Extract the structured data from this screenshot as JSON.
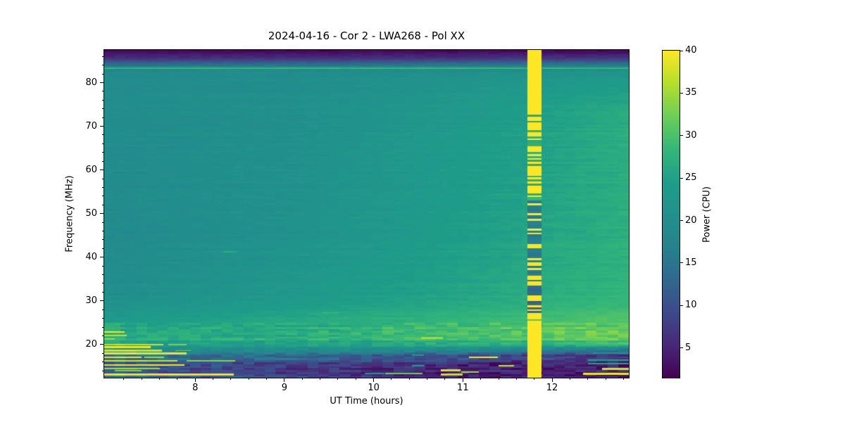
{
  "chart_data": {
    "type": "heatmap",
    "title": "2024-04-16 - Cor 2 - LWA268 - Pol XX",
    "xlabel": "UT Time (hours)",
    "ylabel": "Frequency (MHz)",
    "colorbar_label": "Power (CPU)",
    "colormap": "viridis",
    "grid": false,
    "x_range": [
      6.98,
      12.86
    ],
    "y_range": [
      12.4,
      87.5
    ],
    "c_range": [
      1.5,
      40
    ],
    "x_ticks": [
      8,
      9,
      10,
      11,
      12
    ],
    "x_minor_step": 0.2,
    "y_ticks": [
      20,
      30,
      40,
      50,
      60,
      70,
      80
    ],
    "y_minor_step": 2,
    "colorbar_ticks": [
      5,
      10,
      15,
      20,
      25,
      30,
      35,
      40
    ],
    "viridis_stops": [
      "#440154",
      "#482878",
      "#3e4a89",
      "#31688e",
      "#26828e",
      "#21918c",
      "#1f9e89",
      "#35b779",
      "#6ece58",
      "#b5de2b",
      "#fde725"
    ],
    "styles": {
      "text_color": "#000000",
      "background": "#ffffff",
      "spine_color": "#000000"
    },
    "time_breakpoints": [
      6.98,
      9.0,
      11.0,
      12.86
    ],
    "background_rows": [
      {
        "f": 87.5,
        "p": [
          2.2,
          2.2,
          2.2,
          2.2
        ]
      },
      {
        "f": 86.8,
        "p": [
          3.0,
          3.0,
          3.0,
          3.0
        ]
      },
      {
        "f": 86.0,
        "p": [
          5.0,
          5.0,
          5.0,
          5.5
        ]
      },
      {
        "f": 85.0,
        "p": [
          9.0,
          9.0,
          9.5,
          10.0
        ]
      },
      {
        "f": 84.2,
        "p": [
          13.5,
          14.0,
          14.5,
          15.0
        ]
      },
      {
        "f": 83.5,
        "p": [
          17.0,
          17.5,
          18.0,
          18.5
        ]
      },
      {
        "f": 82.5,
        "p": [
          19.0,
          19.5,
          20.5,
          21.5
        ]
      },
      {
        "f": 80.0,
        "p": [
          19.5,
          20.0,
          22.0,
          24.0
        ]
      },
      {
        "f": 74.0,
        "p": [
          19.5,
          20.5,
          23.0,
          26.5
        ]
      },
      {
        "f": 68.0,
        "p": [
          19.5,
          20.5,
          23.5,
          27.0
        ]
      },
      {
        "f": 60.0,
        "p": [
          19.3,
          20.8,
          23.8,
          27.0
        ]
      },
      {
        "f": 52.0,
        "p": [
          19.2,
          20.8,
          24.0,
          27.0
        ]
      },
      {
        "f": 45.0,
        "p": [
          19.2,
          21.0,
          24.5,
          27.3
        ]
      },
      {
        "f": 38.0,
        "p": [
          19.4,
          21.8,
          25.0,
          27.6
        ]
      },
      {
        "f": 31.0,
        "p": [
          20.2,
          23.0,
          25.8,
          28.2
        ]
      },
      {
        "f": 27.5,
        "p": [
          21.8,
          24.8,
          27.0,
          29.3
        ]
      },
      {
        "f": 25.0,
        "p": [
          24.0,
          26.3,
          28.6,
          31.0
        ]
      },
      {
        "f": 23.0,
        "p": [
          26.0,
          27.4,
          30.2,
          33.0
        ]
      },
      {
        "f": 22.0,
        "p": [
          26.8,
          27.8,
          30.8,
          33.6
        ]
      },
      {
        "f": 21.0,
        "p": [
          25.8,
          26.4,
          28.6,
          31.4
        ]
      },
      {
        "f": 20.0,
        "p": [
          23.0,
          24.0,
          25.6,
          27.4
        ]
      },
      {
        "f": 19.0,
        "p": [
          20.0,
          21.0,
          20.4,
          17.6
        ]
      },
      {
        "f": 18.0,
        "p": [
          16.4,
          17.0,
          13.8,
          10.4
        ]
      },
      {
        "f": 17.0,
        "p": [
          13.4,
          13.0,
          9.4,
          7.0
        ]
      },
      {
        "f": 16.0,
        "p": [
          12.0,
          10.4,
          7.0,
          5.2
        ]
      },
      {
        "f": 15.0,
        "p": [
          11.0,
          8.4,
          5.2,
          4.2
        ]
      },
      {
        "f": 14.0,
        "p": [
          10.4,
          7.2,
          4.4,
          3.6
        ]
      },
      {
        "f": 13.2,
        "p": [
          11.6,
          7.8,
          4.2,
          3.2
        ]
      },
      {
        "f": 12.4,
        "p": [
          13.6,
          9.6,
          5.0,
          3.2
        ]
      }
    ],
    "rfi_lines": [
      {
        "f": 83.3,
        "df": 0.25,
        "t0": 6.98,
        "t1": 12.86,
        "p": 29
      },
      {
        "f": 41.3,
        "df": 0.35,
        "t0": 8.31,
        "t1": 8.47,
        "p": 27.5
      },
      {
        "f": 27.3,
        "df": 0.3,
        "t0": 9.42,
        "t1": 9.62,
        "p": 30
      },
      {
        "f": 22.5,
        "df": 5.0,
        "t0": 6.98,
        "t1": 7.16,
        "p": 28
      },
      {
        "f": 22.9,
        "df": 0.4,
        "t0": 6.98,
        "t1": 7.21,
        "p": 40
      },
      {
        "f": 22.1,
        "df": 0.35,
        "t0": 6.98,
        "t1": 7.23,
        "p": 38
      },
      {
        "f": 21.3,
        "df": 0.35,
        "t0": 6.98,
        "t1": 7.1,
        "p": 36
      },
      {
        "f": 20.0,
        "df": 0.4,
        "t0": 6.98,
        "t1": 7.64,
        "p": 38
      },
      {
        "f": 20.0,
        "df": 0.35,
        "t0": 7.7,
        "t1": 7.9,
        "p": 34
      },
      {
        "f": 19.4,
        "df": 0.4,
        "t0": 6.98,
        "t1": 7.5,
        "p": 40
      },
      {
        "f": 18.6,
        "df": 0.4,
        "t0": 6.98,
        "t1": 7.63,
        "p": 38
      },
      {
        "f": 18.6,
        "df": 0.3,
        "t0": 7.78,
        "t1": 7.95,
        "p": 33
      },
      {
        "f": 17.9,
        "df": 0.45,
        "t0": 6.98,
        "t1": 7.9,
        "p": 40
      },
      {
        "f": 17.1,
        "df": 0.4,
        "t0": 6.98,
        "t1": 7.4,
        "p": 40
      },
      {
        "f": 17.1,
        "df": 0.35,
        "t0": 7.43,
        "t1": 7.65,
        "p": 36
      },
      {
        "f": 16.3,
        "df": 0.4,
        "t0": 6.98,
        "t1": 7.8,
        "p": 38
      },
      {
        "f": 16.3,
        "df": 0.35,
        "t0": 7.9,
        "t1": 8.45,
        "p": 34
      },
      {
        "f": 15.3,
        "df": 0.45,
        "t0": 6.98,
        "t1": 7.88,
        "p": 40
      },
      {
        "f": 14.5,
        "df": 0.4,
        "t0": 6.98,
        "t1": 7.6,
        "p": 36
      },
      {
        "f": 14.0,
        "df": 0.35,
        "t0": 7.1,
        "t1": 7.4,
        "p": 34
      },
      {
        "f": 13.1,
        "df": 0.5,
        "t0": 6.98,
        "t1": 8.43,
        "p": 40
      },
      {
        "f": 21.5,
        "df": 0.35,
        "t0": 10.53,
        "t1": 10.78,
        "p": 36
      },
      {
        "f": 17.1,
        "df": 0.4,
        "t0": 11.07,
        "t1": 11.39,
        "p": 40
      },
      {
        "f": 15.2,
        "df": 0.35,
        "t0": 11.4,
        "t1": 11.57,
        "p": 38
      },
      {
        "f": 14.1,
        "df": 0.35,
        "t0": 10.75,
        "t1": 10.97,
        "p": 38
      },
      {
        "f": 13.1,
        "df": 0.4,
        "t0": 10.75,
        "t1": 11.0,
        "p": 38
      },
      {
        "f": 13.7,
        "df": 0.35,
        "t0": 10.98,
        "t1": 11.18,
        "p": 36
      },
      {
        "f": 13.4,
        "df": 0.35,
        "t0": 9.9,
        "t1": 10.12,
        "p": 22
      },
      {
        "f": 13.4,
        "df": 0.35,
        "t0": 10.13,
        "t1": 10.55,
        "p": 33
      },
      {
        "f": 17.6,
        "df": 0.3,
        "t0": 10.43,
        "t1": 10.56,
        "p": 24
      },
      {
        "f": 15.1,
        "df": 0.3,
        "t0": 10.43,
        "t1": 10.56,
        "p": 24
      },
      {
        "f": 13.3,
        "df": 0.5,
        "t0": 12.35,
        "t1": 12.86,
        "p": 40
      },
      {
        "f": 14.4,
        "df": 0.4,
        "t0": 12.56,
        "t1": 12.86,
        "p": 38
      },
      {
        "f": 16.4,
        "df": 0.35,
        "t0": 12.4,
        "t1": 12.86,
        "p": 26
      },
      {
        "f": 15.6,
        "df": 0.35,
        "t0": 12.4,
        "t1": 12.86,
        "p": 26
      },
      {
        "f": 18.0,
        "df": 0.35,
        "t0": 12.45,
        "t1": 12.86,
        "p": 22
      }
    ],
    "burst": {
      "t0": 11.72,
      "t1": 11.88,
      "segments": [
        {
          "f0": 73.0,
          "f1": 87.5,
          "mode": "solid",
          "p_hi": 40,
          "p_lo": 40,
          "duty": 1.0
        },
        {
          "f0": 53.0,
          "f1": 73.0,
          "mode": "striped",
          "p_hi": 40,
          "p_lo": 27,
          "duty": 0.72
        },
        {
          "f0": 34.0,
          "f1": 53.0,
          "mode": "striped",
          "p_hi": 40,
          "p_lo": 16,
          "duty": 0.35
        },
        {
          "f0": 27.2,
          "f1": 34.0,
          "mode": "striped",
          "p_hi": 40,
          "p_lo": 13,
          "duty": 0.28
        },
        {
          "f0": 24.6,
          "f1": 27.2,
          "mode": "striped",
          "p_hi": 40,
          "p_lo": 30,
          "duty": 0.7
        },
        {
          "f0": 12.4,
          "f1": 24.6,
          "mode": "solid",
          "p_hi": 40,
          "p_lo": 40,
          "duty": 1.0
        }
      ]
    },
    "noise": {
      "channel_mhz": 0.45,
      "block_hours": 0.12,
      "row_amp_hi": 0.45,
      "row_amp_mid": 1.4,
      "row_amp_lo": 1.8,
      "cell_amp_hi": 0.55,
      "cell_amp_mid": 2.0,
      "cell_amp_lo": 3.0
    }
  }
}
